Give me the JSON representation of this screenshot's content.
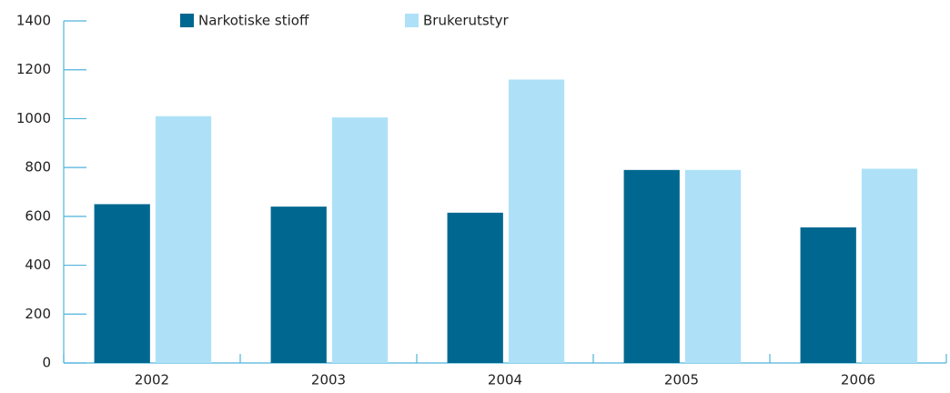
{
  "chart_data": {
    "type": "bar",
    "categories": [
      "2002",
      "2003",
      "2004",
      "2005",
      "2006"
    ],
    "series": [
      {
        "name": "Narkotiske stioff",
        "color": "#006890",
        "values": [
          650,
          640,
          615,
          790,
          555
        ]
      },
      {
        "name": "Brukerutstyr",
        "color": "#aee1f8",
        "values": [
          1010,
          1005,
          1160,
          790,
          795
        ]
      }
    ],
    "ylim": [
      0,
      1400
    ],
    "yticks": [
      0,
      200,
      400,
      600,
      800,
      1000,
      1200,
      1400
    ],
    "grid": false,
    "legend": "top"
  }
}
